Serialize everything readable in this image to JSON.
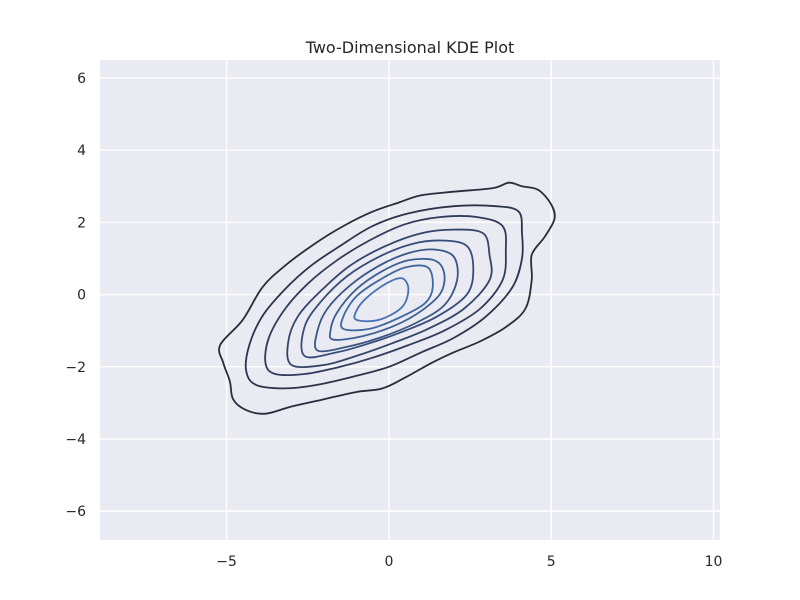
{
  "chart_data": {
    "type": "contour",
    "title": "Two-Dimensional KDE Plot",
    "xlabel": "",
    "ylabel": "",
    "xlim": [
      -8.9,
      10.2
    ],
    "ylim": [
      -6.8,
      6.5
    ],
    "xticks": [
      -5,
      0,
      5,
      10
    ],
    "xtick_labels": [
      "−5",
      "0",
      "5",
      "10"
    ],
    "yticks": [
      -6,
      -4,
      -2,
      0,
      2,
      4,
      6
    ],
    "ytick_labels": [
      "−6",
      "−4",
      "−2",
      "0",
      "2",
      "4",
      "6"
    ],
    "grid": true,
    "background_color": "#eaeaf2",
    "grid_color": "#ffffff",
    "contour_colors": [
      "#2b2c3b",
      "#2e3349",
      "#313b5a",
      "#344469",
      "#374d79",
      "#3a5686",
      "#3d5f93",
      "#4068a0",
      "#4472b0"
    ],
    "contour_levels": [
      {
        "level": 1,
        "points": [
          [
            -4.4,
            -3.2
          ],
          [
            -3.8,
            -3.3
          ],
          [
            -3.0,
            -3.1
          ],
          [
            -2.0,
            -2.9
          ],
          [
            -1.0,
            -2.7
          ],
          [
            -0.2,
            -2.6
          ],
          [
            0.5,
            -2.3
          ],
          [
            1.3,
            -1.9
          ],
          [
            2.0,
            -1.6
          ],
          [
            2.8,
            -1.3
          ],
          [
            3.6,
            -0.9
          ],
          [
            4.2,
            -0.4
          ],
          [
            4.4,
            0.4
          ],
          [
            4.4,
            1.1
          ],
          [
            4.8,
            1.6
          ],
          [
            5.1,
            2.1
          ],
          [
            5.0,
            2.5
          ],
          [
            4.6,
            2.9
          ],
          [
            4.1,
            3.0
          ],
          [
            3.7,
            3.1
          ],
          [
            3.2,
            2.95
          ],
          [
            2.0,
            2.85
          ],
          [
            1.0,
            2.75
          ],
          [
            0.3,
            2.55
          ],
          [
            -0.5,
            2.3
          ],
          [
            -1.4,
            1.9
          ],
          [
            -2.3,
            1.4
          ],
          [
            -3.2,
            0.8
          ],
          [
            -3.9,
            0.2
          ],
          [
            -4.5,
            -0.7
          ],
          [
            -5.2,
            -1.4
          ],
          [
            -5.1,
            -1.9
          ],
          [
            -4.9,
            -2.4
          ],
          [
            -4.8,
            -2.9
          ]
        ]
      },
      {
        "level": 2,
        "points": [
          [
            -4.1,
            -2.5
          ],
          [
            -3.2,
            -2.6
          ],
          [
            -2.2,
            -2.5
          ],
          [
            -1.0,
            -2.25
          ],
          [
            0.0,
            -2.0
          ],
          [
            1.0,
            -1.6
          ],
          [
            2.0,
            -1.2
          ],
          [
            3.0,
            -0.6
          ],
          [
            3.8,
            0.2
          ],
          [
            4.1,
            1.0
          ],
          [
            4.1,
            1.7
          ],
          [
            4.0,
            2.3
          ],
          [
            3.3,
            2.45
          ],
          [
            2.0,
            2.45
          ],
          [
            0.6,
            2.25
          ],
          [
            -0.5,
            1.9
          ],
          [
            -1.5,
            1.35
          ],
          [
            -2.4,
            0.8
          ],
          [
            -3.2,
            0.15
          ],
          [
            -3.9,
            -0.6
          ],
          [
            -4.3,
            -1.4
          ],
          [
            -4.4,
            -2.1
          ]
        ]
      },
      {
        "level": 3,
        "points": [
          [
            -3.5,
            -2.2
          ],
          [
            -2.6,
            -2.2
          ],
          [
            -1.5,
            -2.0
          ],
          [
            -0.5,
            -1.75
          ],
          [
            0.6,
            -1.4
          ],
          [
            1.7,
            -1.0
          ],
          [
            2.8,
            -0.4
          ],
          [
            3.5,
            0.4
          ],
          [
            3.6,
            1.2
          ],
          [
            3.5,
            1.9
          ],
          [
            2.7,
            2.15
          ],
          [
            1.6,
            2.15
          ],
          [
            0.5,
            1.95
          ],
          [
            -0.6,
            1.5
          ],
          [
            -1.6,
            0.95
          ],
          [
            -2.5,
            0.3
          ],
          [
            -3.2,
            -0.4
          ],
          [
            -3.7,
            -1.2
          ],
          [
            -3.8,
            -1.9
          ]
        ]
      },
      {
        "level": 4,
        "points": [
          [
            -3.0,
            -1.95
          ],
          [
            -2.0,
            -1.95
          ],
          [
            -1.0,
            -1.7
          ],
          [
            0.1,
            -1.35
          ],
          [
            1.2,
            -0.95
          ],
          [
            2.3,
            -0.4
          ],
          [
            3.1,
            0.4
          ],
          [
            3.1,
            1.1
          ],
          [
            2.9,
            1.7
          ],
          [
            2.0,
            1.8
          ],
          [
            1.0,
            1.7
          ],
          [
            -0.1,
            1.35
          ],
          [
            -1.2,
            0.8
          ],
          [
            -2.1,
            0.1
          ],
          [
            -2.8,
            -0.6
          ],
          [
            -3.1,
            -1.3
          ]
        ]
      },
      {
        "level": 5,
        "points": [
          [
            -2.6,
            -1.7
          ],
          [
            -1.6,
            -1.6
          ],
          [
            -0.6,
            -1.35
          ],
          [
            0.5,
            -1.0
          ],
          [
            1.5,
            -0.6
          ],
          [
            2.4,
            0.0
          ],
          [
            2.6,
            0.7
          ],
          [
            2.4,
            1.35
          ],
          [
            1.6,
            1.5
          ],
          [
            0.7,
            1.4
          ],
          [
            -0.3,
            1.05
          ],
          [
            -1.3,
            0.5
          ],
          [
            -2.1,
            -0.2
          ],
          [
            -2.6,
            -0.9
          ]
        ]
      },
      {
        "level": 6,
        "points": [
          [
            -2.2,
            -1.55
          ],
          [
            -1.3,
            -1.45
          ],
          [
            -0.3,
            -1.2
          ],
          [
            0.8,
            -0.8
          ],
          [
            1.7,
            -0.3
          ],
          [
            2.1,
            0.4
          ],
          [
            2.0,
            1.05
          ],
          [
            1.4,
            1.25
          ],
          [
            0.6,
            1.15
          ],
          [
            -0.3,
            0.8
          ],
          [
            -1.2,
            0.25
          ],
          [
            -1.9,
            -0.4
          ],
          [
            -2.2,
            -1.0
          ]
        ]
      },
      {
        "level": 7,
        "points": [
          [
            -1.7,
            -1.25
          ],
          [
            -0.8,
            -1.15
          ],
          [
            0.2,
            -0.85
          ],
          [
            1.0,
            -0.45
          ],
          [
            1.6,
            0.05
          ],
          [
            1.7,
            0.6
          ],
          [
            1.4,
            0.95
          ],
          [
            0.6,
            0.95
          ],
          [
            -0.2,
            0.65
          ],
          [
            -1.0,
            0.15
          ],
          [
            -1.6,
            -0.5
          ],
          [
            -1.8,
            -1.0
          ]
        ]
      },
      {
        "level": 8,
        "points": [
          [
            -1.4,
            -0.95
          ],
          [
            -0.6,
            -0.95
          ],
          [
            0.3,
            -0.65
          ],
          [
            1.1,
            -0.25
          ],
          [
            1.35,
            0.2
          ],
          [
            1.2,
            0.75
          ],
          [
            0.5,
            0.75
          ],
          [
            -0.3,
            0.4
          ],
          [
            -1.0,
            -0.05
          ],
          [
            -1.4,
            -0.6
          ]
        ]
      },
      {
        "level": 9,
        "points": [
          [
            -1.0,
            -0.7
          ],
          [
            -0.3,
            -0.7
          ],
          [
            0.4,
            -0.35
          ],
          [
            0.6,
            0.15
          ],
          [
            0.4,
            0.45
          ],
          [
            -0.1,
            0.3
          ],
          [
            -0.7,
            -0.1
          ],
          [
            -1.0,
            -0.45
          ]
        ]
      }
    ]
  }
}
